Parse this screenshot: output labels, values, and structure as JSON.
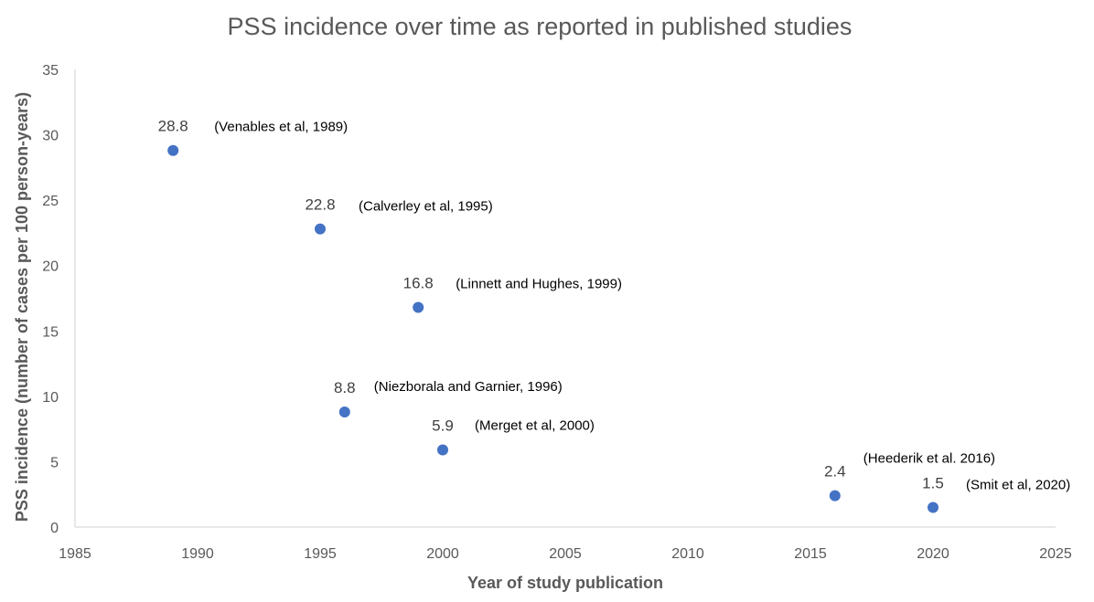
{
  "chart_data": {
    "type": "scatter",
    "title": "PSS incidence over time as reported in published studies",
    "xlabel": "Year of study publication",
    "ylabel": "PSS incidence (number of cases per 100 person-years)",
    "xlim": [
      1985,
      2025
    ],
    "ylim": [
      0,
      35
    ],
    "x_ticks": [
      1985,
      1990,
      1995,
      2000,
      2005,
      2010,
      2015,
      2020,
      2025
    ],
    "y_ticks": [
      0,
      5,
      10,
      15,
      20,
      25,
      30,
      35
    ],
    "grid": false,
    "marker_color": "#4472c4",
    "points": [
      {
        "x": 1989,
        "y": 28.8,
        "value_label": "28.8",
        "study": "(Venables et al, 1989)"
      },
      {
        "x": 1995,
        "y": 22.8,
        "value_label": "22.8",
        "study": "(Calverley et al, 1995)"
      },
      {
        "x": 1999,
        "y": 16.8,
        "value_label": "16.8",
        "study": "(Linnett and Hughes, 1999)"
      },
      {
        "x": 1996,
        "y": 8.8,
        "value_label": "8.8",
        "study": "(Niezborala and Garnier, 1996)"
      },
      {
        "x": 2000,
        "y": 5.9,
        "value_label": "5.9",
        "study": "(Merget et al, 2000)"
      },
      {
        "x": 2016,
        "y": 2.4,
        "value_label": "2.4",
        "study": "(Heederik et al. 2016)"
      },
      {
        "x": 2020,
        "y": 1.5,
        "value_label": "1.5",
        "study": "(Smit et al, 2020)"
      }
    ]
  }
}
